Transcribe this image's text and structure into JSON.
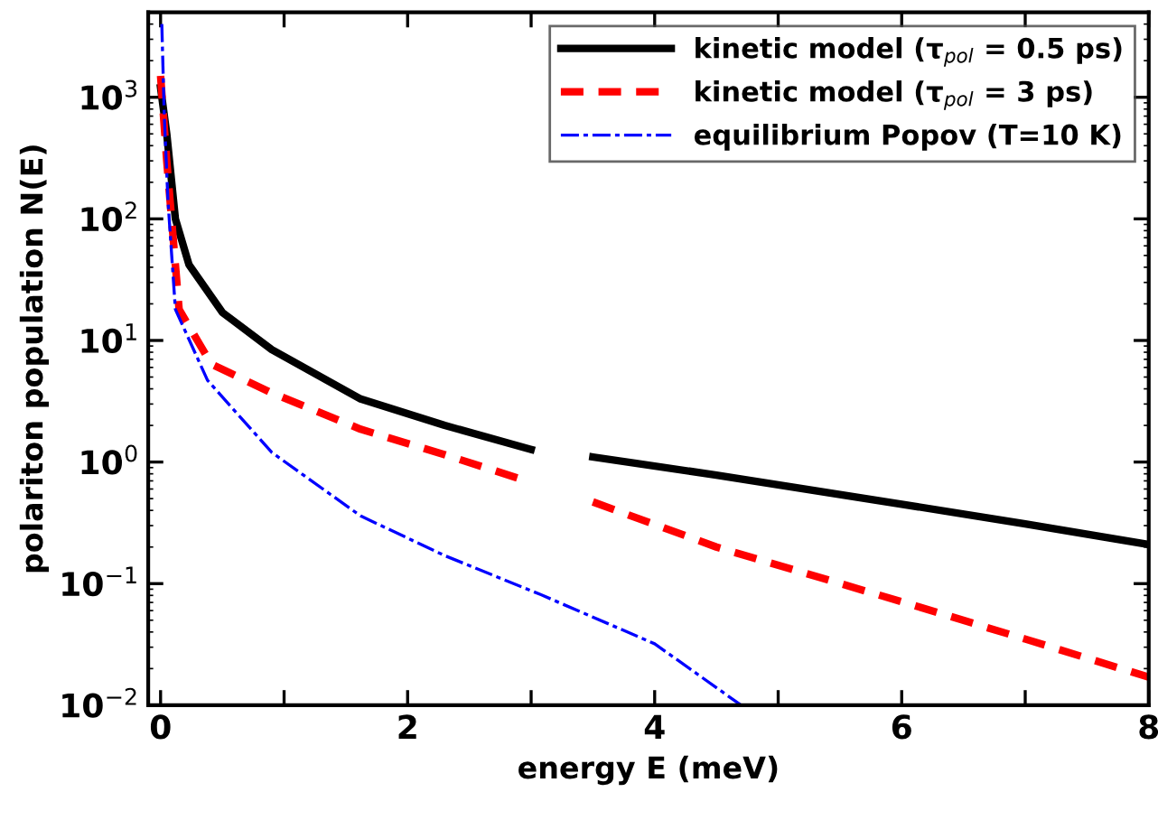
{
  "chart_data": {
    "type": "line",
    "xlabel": "energy E (meV)",
    "ylabel": "polariton population N(E)",
    "log": "y",
    "grid": false,
    "legend": "top right",
    "xlim": [
      -0.1,
      8
    ],
    "ylim": [
      0.01,
      5000
    ],
    "xticks": [
      0,
      {
        "value": 1,
        "label": null
      },
      2,
      {
        "value": 3,
        "label": null
      },
      4,
      {
        "value": 5,
        "label": null
      },
      6,
      {
        "value": 7,
        "label": null
      },
      8
    ],
    "yticks": [
      {
        "value": 0.01,
        "label": "10$^{−2}$"
      },
      {
        "value": 0.1,
        "label": "10$^{−1}$"
      },
      {
        "value": 1,
        "label": "10$^{0}$"
      },
      {
        "value": 10,
        "label": "10$^{1}$"
      },
      {
        "value": 100,
        "label": "10$^{2}$"
      },
      {
        "value": 1000,
        "label": "10$^{3}$"
      }
    ],
    "series": [
      {
        "name": "kinetic model (τ$_{pol}$ = 0.5 ps)",
        "color": "#000000",
        "line_style": "solid",
        "x": [
          0,
          0.05,
          0.12,
          0.23,
          0.5,
          0.9,
          1.62,
          2.3,
          3,
          3.25,
          3.5,
          4.5,
          6,
          7,
          8
        ],
        "values": [
          1200,
          500,
          100,
          42,
          17,
          8.4,
          3.3,
          2.0,
          1.27,
          null,
          1.1,
          0.78,
          0.45,
          0.31,
          0.21
        ]
      },
      {
        "name": "kinetic model (τ$_{pol}$ = 3 ps)",
        "color": "#ff0000",
        "line_style": "dashed",
        "x": [
          0,
          0.05,
          0.15,
          0.41,
          0.9,
          1.62,
          2.3,
          3,
          3.25,
          3.5,
          4.5,
          6,
          7,
          8
        ],
        "values": [
          1500,
          300,
          18,
          6.4,
          3.7,
          1.86,
          1.15,
          0.68,
          null,
          0.47,
          0.2,
          0.071,
          0.035,
          0.017
        ]
      },
      {
        "name": "equilibrium Popov (T=10 K)",
        "color": "#0000ff",
        "line_style": "dashdot",
        "x": [
          0.01,
          0.03,
          0.06,
          0.12,
          0.38,
          0.9,
          1.62,
          2.3,
          3.08,
          4,
          4.7
        ],
        "values": [
          4000,
          700,
          140,
          18,
          4.7,
          1.2,
          0.36,
          0.17,
          0.081,
          0.032,
          0.01
        ]
      }
    ]
  }
}
